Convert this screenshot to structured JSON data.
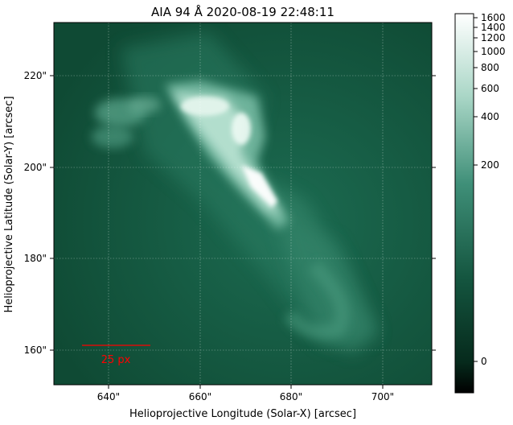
{
  "title": "AIA 94 Å 2020-08-19 22:48:11",
  "xlabel": "Helioprojective Longitude (Solar-X) [arcsec]",
  "ylabel": "Helioprojective Latitude (Solar-Y) [arcsec]",
  "x_ticks": [
    "640\"",
    "660\"",
    "680\"",
    "700\""
  ],
  "y_ticks": [
    "220\"",
    "200\"",
    "180\"",
    "160\""
  ],
  "scale_bar_label": "25 px",
  "colorbar": {
    "ticks": [
      "1600",
      "1400",
      "1200",
      "1000",
      "800",
      "600",
      "400",
      "200",
      "0"
    ]
  },
  "colors": {
    "map_dark": "#0b3524",
    "map_mid": "#1f6e55",
    "map_bright": "#f2fbf6",
    "scale_bar": "#ff0000",
    "grid": "#ffffff"
  }
}
